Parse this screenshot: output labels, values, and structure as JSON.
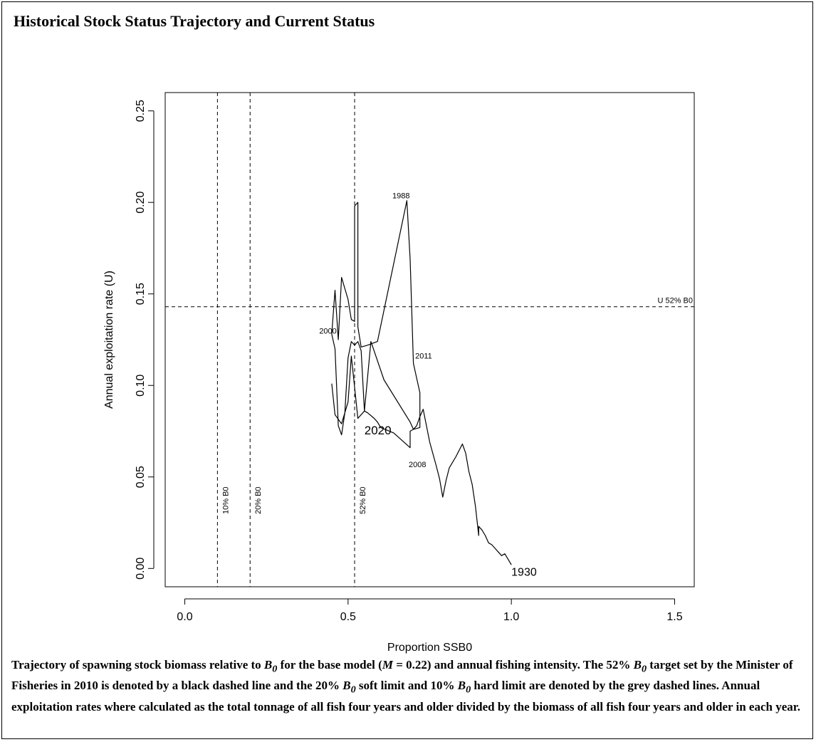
{
  "heading": "Historical Stock Status Trajectory and Current Status",
  "caption": {
    "part1": "Trajectory of spawning stock biomass relative to ",
    "b0_1": "B",
    "sub_1": "0",
    "part2": " for the base model (",
    "m_symbol": "M",
    "part3": " = 0.22) and annual fishing intensity. The 52% ",
    "b0_2": "B",
    "sub_2": "0",
    "part4": " target set by the Minister of Fisheries in 2010 is denoted by a black dashed line and the 20% ",
    "b0_3": "B",
    "sub_3": "0",
    "part5": " soft limit and 10% ",
    "b0_4": "B",
    "sub_4": "0",
    "part6": " hard limit are denoted by the grey dashed lines. Annual exploitation rates where calculated as the total tonnage of all fish four years and older divided by the biomass of all fish four years and older in each year."
  },
  "chart_data": {
    "type": "line",
    "xlabel": "Proportion SSB0",
    "ylabel": "Annual exploitation rate (U)",
    "xlim": [
      -0.06,
      1.56
    ],
    "ylim": [
      -0.01,
      0.26
    ],
    "xticks": [
      0.0,
      0.5,
      1.0,
      1.5
    ],
    "xtick_labels": [
      "0.0",
      "0.5",
      "1.0",
      "1.5"
    ],
    "yticks": [
      0.0,
      0.05,
      0.1,
      0.15,
      0.2,
      0.25
    ],
    "ytick_labels": [
      "0.00",
      "0.05",
      "0.10",
      "0.15",
      "0.20",
      "0.25"
    ],
    "grid": false,
    "reference_lines": [
      {
        "orientation": "vertical",
        "x": 0.1,
        "label": "10% B0"
      },
      {
        "orientation": "vertical",
        "x": 0.2,
        "label": "20% B0"
      },
      {
        "orientation": "vertical",
        "x": 0.52,
        "label": "52% B0"
      },
      {
        "orientation": "horizontal",
        "y": 0.143,
        "label": "U 52% B0"
      }
    ],
    "series": [
      {
        "x": [
          1.0,
          0.99,
          0.98,
          0.97,
          0.96,
          0.95,
          0.94,
          0.93,
          0.92,
          0.91,
          0.9,
          0.9,
          0.89,
          0.88,
          0.87,
          0.86,
          0.85,
          0.83,
          0.81,
          0.8,
          0.79,
          0.78,
          0.77,
          0.75,
          0.73,
          0.72,
          0.71,
          0.7,
          0.69,
          0.69,
          0.64,
          0.6,
          0.59,
          0.58,
          0.56,
          0.55,
          0.54,
          0.53,
          0.52,
          0.51,
          0.5,
          0.49,
          0.48,
          0.47,
          0.46,
          0.45,
          0.46,
          0.47,
          0.48,
          0.5,
          0.51,
          0.52,
          0.52,
          0.53,
          0.53,
          0.53,
          0.54,
          0.56,
          0.59,
          0.68,
          0.69,
          0.7,
          0.72,
          0.72,
          0.7,
          0.69,
          0.61,
          0.57,
          0.55,
          0.53,
          0.51,
          0.5,
          0.48,
          0.46,
          0.45
        ],
        "y": [
          0.002,
          0.005,
          0.008,
          0.007,
          0.009,
          0.011,
          0.013,
          0.014,
          0.018,
          0.021,
          0.023,
          0.018,
          0.034,
          0.046,
          0.053,
          0.063,
          0.068,
          0.061,
          0.055,
          0.048,
          0.039,
          0.049,
          0.056,
          0.069,
          0.087,
          0.083,
          0.078,
          0.076,
          0.075,
          0.066,
          0.074,
          0.077,
          0.08,
          0.082,
          0.085,
          0.086,
          0.119,
          0.124,
          0.122,
          0.124,
          0.115,
          0.085,
          0.073,
          0.078,
          0.12,
          0.128,
          0.152,
          0.125,
          0.159,
          0.147,
          0.136,
          0.135,
          0.198,
          0.2,
          0.15,
          0.132,
          0.121,
          0.122,
          0.124,
          0.201,
          0.169,
          0.112,
          0.096,
          0.077,
          0.076,
          0.08,
          0.103,
          0.124,
          0.086,
          0.082,
          0.116,
          0.091,
          0.079,
          0.084,
          0.101
        ]
      }
    ],
    "annotations": [
      {
        "text": "1930",
        "x": 1.0,
        "y": 0.0
      },
      {
        "text": "1988",
        "x": 0.64,
        "y": 0.201
      },
      {
        "text": "2000",
        "x": 0.44,
        "y": 0.128
      },
      {
        "text": "2008",
        "x": 0.69,
        "y": 0.062
      },
      {
        "text": "2011",
        "x": 0.71,
        "y": 0.114
      },
      {
        "text": "2020",
        "x": 0.55,
        "y": 0.078
      }
    ]
  }
}
